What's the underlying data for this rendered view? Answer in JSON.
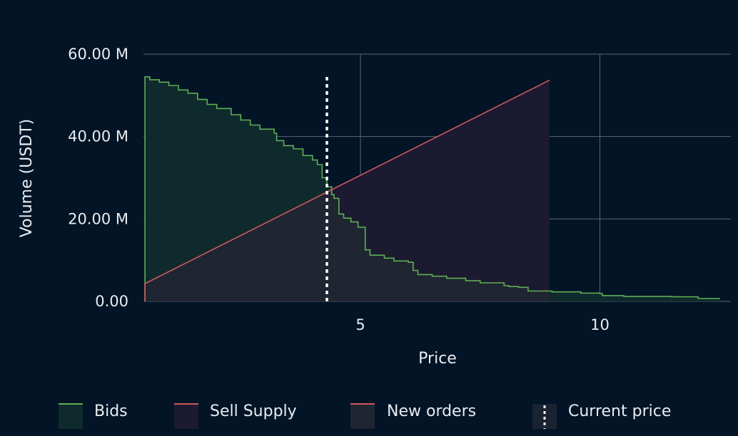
{
  "chart_data": {
    "type": "area",
    "title": "",
    "xlabel": "Price",
    "ylabel": "Volume (USDT)",
    "xlim": [
      0.3,
      12.8
    ],
    "ylim": [
      0,
      60000000
    ],
    "x_ticks": [
      {
        "value": 5,
        "label": "5"
      },
      {
        "value": 10,
        "label": "10"
      }
    ],
    "y_ticks": [
      {
        "value": 0,
        "label": "0.00"
      },
      {
        "value": 20000000,
        "label": "20.00 M"
      },
      {
        "value": 40000000,
        "label": "40.00 M"
      },
      {
        "value": 60000000,
        "label": "60.00 M"
      }
    ],
    "grid": true,
    "legend_position": "bottom",
    "colors": {
      "background": "#021426",
      "grid": "#5c6773",
      "bids_line": "#5fae55",
      "bids_fill": "#0f2a2c",
      "sell_line": "#d2595e",
      "sell_fill": "#1c1a30",
      "overlap_fill": "#1f2531",
      "current_price": "#ffffff"
    },
    "series": [
      {
        "name": "Bids",
        "kind": "step-area",
        "points": [
          [
            0.5,
            54500000
          ],
          [
            0.6,
            53800000
          ],
          [
            0.8,
            53200000
          ],
          [
            1.0,
            52400000
          ],
          [
            1.2,
            51300000
          ],
          [
            1.4,
            50500000
          ],
          [
            1.6,
            49000000
          ],
          [
            1.8,
            47800000
          ],
          [
            2.0,
            46800000
          ],
          [
            2.3,
            45300000
          ],
          [
            2.5,
            44000000
          ],
          [
            2.7,
            42800000
          ],
          [
            2.9,
            41800000
          ],
          [
            3.2,
            40800000
          ],
          [
            3.25,
            39000000
          ],
          [
            3.4,
            37800000
          ],
          [
            3.6,
            37000000
          ],
          [
            3.8,
            35400000
          ],
          [
            4.0,
            34300000
          ],
          [
            4.1,
            33200000
          ],
          [
            4.2,
            30000000
          ],
          [
            4.3,
            27800000
          ],
          [
            4.4,
            25900000
          ],
          [
            4.45,
            25000000
          ],
          [
            4.55,
            21200000
          ],
          [
            4.65,
            20200000
          ],
          [
            4.8,
            19300000
          ],
          [
            4.95,
            18000000
          ],
          [
            5.1,
            12500000
          ],
          [
            5.2,
            11200000
          ],
          [
            5.5,
            10500000
          ],
          [
            5.7,
            9800000
          ],
          [
            6.0,
            9500000
          ],
          [
            6.1,
            7500000
          ],
          [
            6.2,
            6500000
          ],
          [
            6.5,
            6100000
          ],
          [
            6.8,
            5600000
          ],
          [
            7.2,
            5000000
          ],
          [
            7.5,
            4500000
          ],
          [
            8.0,
            3800000
          ],
          [
            8.1,
            3600000
          ],
          [
            8.3,
            3400000
          ],
          [
            8.5,
            2500000
          ],
          [
            9.0,
            2300000
          ],
          [
            9.6,
            2000000
          ],
          [
            10.0,
            1900000
          ],
          [
            10.05,
            1400000
          ],
          [
            10.5,
            1200000
          ],
          [
            11.5,
            1100000
          ],
          [
            12.05,
            700000
          ],
          [
            12.5,
            600000
          ]
        ]
      },
      {
        "name": "Sell Supply",
        "kind": "line",
        "points": [
          [
            0.5,
            4300000
          ],
          [
            8.95,
            53700000
          ]
        ]
      },
      {
        "name": "New orders",
        "kind": "area"
      },
      {
        "name": "Current price",
        "kind": "vline",
        "x": 4.3
      }
    ]
  }
}
